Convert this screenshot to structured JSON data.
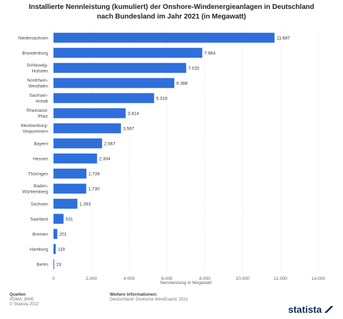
{
  "title_lines": [
    "Installierte Nennleistung (kumuliert) der Onshore-Windenergieanlagen in Deutschland",
    "nach Bundesland im Jahr 2021 (in Megawatt)"
  ],
  "chart_data": {
    "type": "bar",
    "orientation": "horizontal",
    "categories": [
      [
        "Niedersachsen"
      ],
      [
        "Brandenburg"
      ],
      [
        "Schleswig-",
        "Holstein"
      ],
      [
        "Nordrhein-",
        "Westfalen"
      ],
      [
        "Sachsen-",
        "Anhalt"
      ],
      [
        "Rheinland-",
        "Pfalz"
      ],
      [
        "Mecklenburg-",
        "Vorpommern"
      ],
      [
        "Bayern"
      ],
      [
        "Hessen"
      ],
      [
        "Thüringen"
      ],
      [
        "Baden-",
        "Württemberg"
      ],
      [
        "Sachsen"
      ],
      [
        "Saarland"
      ],
      [
        "Bremen"
      ],
      [
        "Hamburg"
      ],
      [
        "Berlin"
      ]
    ],
    "values": [
      11687,
      7864,
      7015,
      6388,
      5318,
      3814,
      3567,
      2567,
      2304,
      1739,
      1730,
      1263,
      531,
      201,
      119,
      23
    ],
    "value_labels": [
      "11.687",
      "7.864",
      "7.015",
      "6.388",
      "5.318",
      "3.814",
      "3.567",
      "2.567",
      "2.304",
      "1.739",
      "1.730",
      "1.263",
      "531",
      "201",
      "119",
      "23"
    ],
    "xlim": [
      0,
      14000
    ],
    "xticks": [
      0,
      2000,
      4000,
      6000,
      8000,
      10000,
      12000,
      14000
    ],
    "xtick_labels": [
      "0",
      "2.000",
      "4.000",
      "6.000",
      "8.000",
      "10.000",
      "12.000",
      "14.000"
    ],
    "xlabel": "Nennleistung in Megawatt",
    "bar_color": "#2f6fdc",
    "grid": true
  },
  "footer": {
    "sources_heading": "Quellen",
    "sources_lines": [
      "VDMA; BWE",
      "© Statista 2022"
    ],
    "info_heading": "Weitere Informationen:",
    "info_lines": [
      "Deutschland; Deutsche WindGuard; 2021"
    ]
  },
  "brand": {
    "name": "statista"
  }
}
